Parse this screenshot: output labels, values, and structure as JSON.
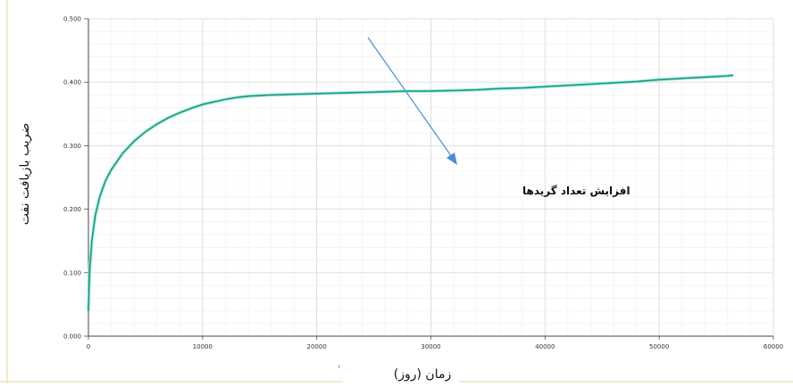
{
  "chart_data": {
    "type": "line",
    "title": "",
    "xlabel": "زمان (روز)",
    "ylabel": "ضریب بازیافت نفت",
    "xlim": [
      0,
      60000
    ],
    "ylim": [
      0,
      0.5
    ],
    "x_ticks": [
      0,
      10000,
      20000,
      30000,
      40000,
      50000,
      60000
    ],
    "x_tick_labels": [
      "0",
      "10000",
      "20000",
      "30000",
      "40000",
      "50000",
      "60000"
    ],
    "y_ticks": [
      0,
      0.1,
      0.2,
      0.3,
      0.4,
      0.5
    ],
    "y_tick_labels": [
      "0.000",
      "0.100",
      "0.200",
      "0.300",
      "0.400",
      "0.500"
    ],
    "grid": true,
    "legend": "none",
    "annotation": {
      "text": "افزایش تعداد گریدها"
    },
    "axis_small_label": "t",
    "colors": {
      "series_main": "#2ec4a8",
      "series_dark": "#1d6b5a",
      "arrow": "#4a8fd8",
      "grid": "#dcdcdc",
      "minor_grid": "#efefef",
      "border": "#f1e3b8"
    },
    "series": [
      {
        "x": [
          0,
          100,
          300,
          600,
          1000,
          1500,
          2000,
          3000,
          4000,
          5000,
          6000,
          7000,
          8000,
          9000,
          10000,
          11000,
          12000,
          13000,
          14000,
          15000,
          16000,
          18000,
          20000,
          22000,
          24000,
          26000,
          28000,
          30000,
          32000,
          34000,
          36000,
          38000,
          40000,
          42000,
          44000,
          46000,
          48000,
          50000,
          52000,
          54000,
          56000,
          56500
        ],
        "y": [
          0.04,
          0.1,
          0.15,
          0.19,
          0.22,
          0.245,
          0.262,
          0.288,
          0.307,
          0.322,
          0.334,
          0.344,
          0.352,
          0.359,
          0.365,
          0.369,
          0.373,
          0.376,
          0.378,
          0.379,
          0.38,
          0.381,
          0.382,
          0.383,
          0.384,
          0.385,
          0.386,
          0.386,
          0.387,
          0.388,
          0.39,
          0.391,
          0.393,
          0.395,
          0.397,
          0.399,
          0.401,
          0.404,
          0.406,
          0.408,
          0.41,
          0.411
        ]
      }
    ]
  }
}
